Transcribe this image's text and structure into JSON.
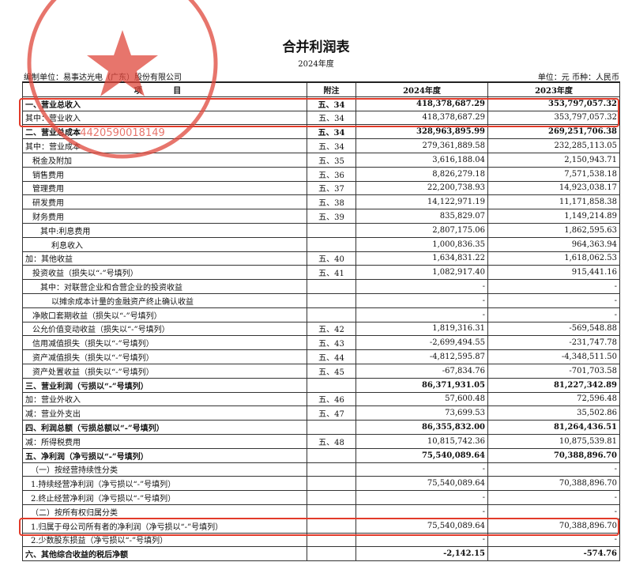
{
  "title": "合并利润表",
  "period": "2024年度",
  "preparer": "编制单位：易事达光电（广东）股份有限公司",
  "unit": "单位：元  币种：人民币",
  "stamp_text": "易事达光电（广东）股份有限公司",
  "stamp_number": "4420590018149",
  "highlight_color": "#e23b2a",
  "columns": {
    "item": "项 目",
    "note": "附注",
    "y2024": "2024年度",
    "y2023": "2023年度"
  },
  "rows": [
    {
      "label": "一、营业总收入",
      "note": "五、34",
      "y2024": "418,378,687.29",
      "y2023": "353,797,057.32"
    },
    {
      "label": "其中：营业收入",
      "note": "五、34",
      "y2024": "418,378,687.29",
      "y2023": "353,797,057.32"
    },
    {
      "label": "二、营业总成本",
      "note": "五、34",
      "y2024": "328,963,895.99",
      "y2023": "269,251,706.38"
    },
    {
      "label": "其中：营业成本",
      "note": "五、34",
      "y2024": "279,361,889.58",
      "y2023": "232,285,113.05"
    },
    {
      "label": "税金及附加",
      "note": "五、35",
      "y2024": "3,616,188.04",
      "y2023": "2,150,943.71"
    },
    {
      "label": "销售费用",
      "note": "五、36",
      "y2024": "8,826,279.18",
      "y2023": "7,571,538.18"
    },
    {
      "label": "管理费用",
      "note": "五、37",
      "y2024": "22,200,738.93",
      "y2023": "14,923,038.17"
    },
    {
      "label": "研发费用",
      "note": "五、38",
      "y2024": "14,122,971.19",
      "y2023": "11,171,858.38"
    },
    {
      "label": "财务费用",
      "note": "五、39",
      "y2024": "835,829.07",
      "y2023": "1,149,214.89"
    },
    {
      "label": "其中:利息费用",
      "note": "",
      "y2024": "2,807,175.06",
      "y2023": "1,862,595.63"
    },
    {
      "label": "利息收入",
      "note": "",
      "y2024": "1,000,836.35",
      "y2023": "964,363.94"
    },
    {
      "label": "加：其他收益",
      "note": "五、40",
      "y2024": "1,634,831.22",
      "y2023": "1,618,062.53"
    },
    {
      "label": "投资收益（损失以“-”号填列）",
      "note": "五、41",
      "y2024": "1,082,917.40",
      "y2023": "915,441.16"
    },
    {
      "label": "其中：对联营企业和合营企业的投资收益",
      "note": "",
      "y2024": "-",
      "y2023": "-"
    },
    {
      "label": "以摊余成本计量的金融资产终止确认收益",
      "note": "",
      "y2024": "-",
      "y2023": "-"
    },
    {
      "label": "净敞口套期收益（损失以“-”号填列）",
      "note": "",
      "y2024": "-",
      "y2023": "-"
    },
    {
      "label": "公允价值变动收益（损失以“-”号填列）",
      "note": "五、42",
      "y2024": "1,819,316.31",
      "y2023": "-569,548.88"
    },
    {
      "label": "信用减值损失（损失以“-”号填列）",
      "note": "五、43",
      "y2024": "-2,699,494.55",
      "y2023": "-231,747.78"
    },
    {
      "label": "资产减值损失（损失以“-”号填列）",
      "note": "五、44",
      "y2024": "-4,812,595.87",
      "y2023": "-4,348,511.50"
    },
    {
      "label": "资产处置收益（损失以“-”号填列）",
      "note": "五、45",
      "y2024": "-67,834.76",
      "y2023": "-701,703.58"
    },
    {
      "label": "三、营业利润（亏损以“-”号填列）",
      "note": "",
      "y2024": "86,371,931.05",
      "y2023": "81,227,342.89"
    },
    {
      "label": "加：营业外收入",
      "note": "五、46",
      "y2024": "57,600.48",
      "y2023": "72,596.48"
    },
    {
      "label": "减：营业外支出",
      "note": "五、47",
      "y2024": "73,699.53",
      "y2023": "35,502.86"
    },
    {
      "label": "四、利润总额（亏损总额以“-”号填列）",
      "note": "",
      "y2024": "86,355,832.00",
      "y2023": "81,264,436.51"
    },
    {
      "label": "减：所得税费用",
      "note": "五、48",
      "y2024": "10,815,742.36",
      "y2023": "10,875,539.81"
    },
    {
      "label": "五、净利润（净亏损以“-”号填列）",
      "note": "",
      "y2024": "75,540,089.64",
      "y2023": "70,388,896.70"
    },
    {
      "label": "（一）按经营持续性分类",
      "note": "",
      "y2024": "-",
      "y2023": "-"
    },
    {
      "label": "1.持续经营净利润（净亏损以“-”号填列）",
      "note": "",
      "y2024": "75,540,089.64",
      "y2023": "70,388,896.70"
    },
    {
      "label": "2.终止经营净利润（净亏损以“-”号填列）",
      "note": "",
      "y2024": "-",
      "y2023": "-"
    },
    {
      "label": "（二）按所有权归属分类",
      "note": "",
      "y2024": "-",
      "y2023": "-"
    },
    {
      "label": "1.归属于母公司所有者的净利润（净亏损以“-”号填列）",
      "note": "",
      "y2024": "75,540,089.64",
      "y2023": "70,388,896.70"
    },
    {
      "label": "2.少数股东损益（净亏损以“-”号填列）",
      "note": "",
      "y2024": "-",
      "y2023": "-"
    },
    {
      "label": "六、其他综合收益的税后净额",
      "note": "",
      "y2024": "-2,142.15",
      "y2023": "-574.76"
    }
  ]
}
